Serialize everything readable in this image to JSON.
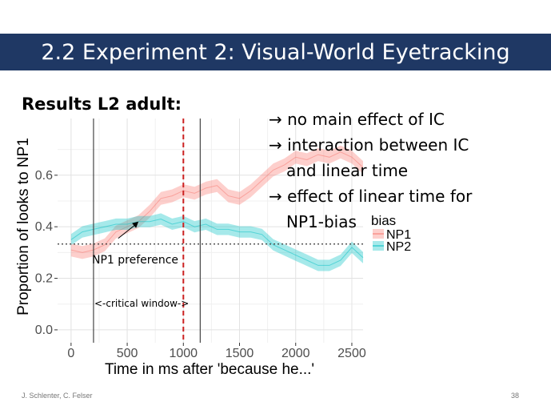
{
  "slide": {
    "title": "2.2 Experiment 2: Visual-World Eyetracking",
    "results_heading": "Results L2 adult:",
    "bullets": [
      "no main effect of IC",
      "interaction between IC",
      "and linear time",
      "effect of linear time for",
      "NP1-bias"
    ],
    "footer_left": "J. Schlenter, C. Felser",
    "page_number": "38"
  },
  "chart_data": {
    "type": "line",
    "xlabel": "Time in ms after 'because he...'",
    "ylabel": "Proportion of looks to NP1",
    "xlim": [
      -120,
      2600
    ],
    "ylim": [
      -0.05,
      0.82
    ],
    "xticks": [
      0,
      500,
      1000,
      1500,
      2000,
      2500
    ],
    "yticks": [
      0.0,
      0.2,
      0.4,
      0.6
    ],
    "ytick_labels": [
      "0.0",
      "0.2",
      "0.4",
      "0.6"
    ],
    "grid": true,
    "legend": {
      "title": "bias",
      "position": "right",
      "entries": [
        "NP1",
        "NP2"
      ]
    },
    "series": [
      {
        "name": "NP1",
        "color": "#f8766d",
        "x": [
          0,
          100,
          200,
          300,
          400,
          500,
          600,
          700,
          800,
          900,
          1000,
          1100,
          1200,
          1300,
          1400,
          1500,
          1600,
          1700,
          1800,
          1900,
          2000,
          2100,
          2200,
          2300,
          2400,
          2500,
          2600
        ],
        "y": [
          0.31,
          0.3,
          0.31,
          0.33,
          0.38,
          0.4,
          0.42,
          0.46,
          0.51,
          0.52,
          0.54,
          0.53,
          0.55,
          0.56,
          0.52,
          0.51,
          0.54,
          0.58,
          0.62,
          0.64,
          0.67,
          0.66,
          0.68,
          0.67,
          0.69,
          0.67,
          0.63
        ],
        "ci": 0.025
      },
      {
        "name": "NP2",
        "color": "#00bfc4",
        "x": [
          0,
          100,
          200,
          300,
          400,
          500,
          600,
          700,
          800,
          900,
          1000,
          1100,
          1200,
          1300,
          1400,
          1500,
          1600,
          1700,
          1800,
          1900,
          2000,
          2100,
          2200,
          2300,
          2400,
          2500,
          2600
        ],
        "y": [
          0.35,
          0.38,
          0.39,
          0.4,
          0.41,
          0.41,
          0.42,
          0.42,
          0.43,
          0.41,
          0.42,
          0.4,
          0.41,
          0.39,
          0.39,
          0.38,
          0.38,
          0.37,
          0.33,
          0.31,
          0.29,
          0.27,
          0.25,
          0.25,
          0.27,
          0.32,
          0.28
        ],
        "ci": 0.022
      }
    ],
    "reference_lines": [
      {
        "kind": "vertical",
        "x": 200,
        "style": "solid",
        "color": "#444444"
      },
      {
        "kind": "vertical",
        "x": 1000,
        "style": "dashed",
        "color": "#cc2222"
      },
      {
        "kind": "vertical",
        "x": 1150,
        "style": "solid",
        "color": "#444444"
      },
      {
        "kind": "horizontal",
        "y": 0.333,
        "style": "dotted",
        "color": "#333333"
      }
    ],
    "annotations": {
      "np1_preference": "NP1 preference",
      "critical_window": "<-critical window->"
    }
  }
}
